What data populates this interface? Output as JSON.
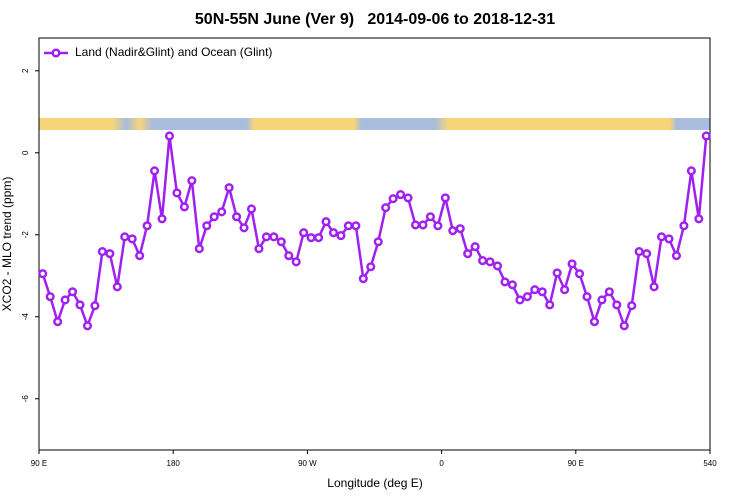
{
  "chart_data": {
    "type": "line",
    "title": "50N-55N June (Ver 9)   2014-09-06 to 2018-12-31",
    "x_label": "Longitude (deg E)",
    "y_label": "XCO2 - MLO trend (ppm)",
    "x": [
      92.5,
      97.5,
      102.5,
      107.5,
      112.5,
      117.5,
      122.5,
      127.5,
      132.5,
      137.5,
      142.5,
      147.5,
      152.5,
      157.5,
      162.5,
      167.5,
      172.5,
      177.5,
      182.5,
      187.5,
      192.5,
      197.5,
      202.5,
      207.5,
      212.5,
      217.5,
      222.5,
      227.5,
      232.5,
      237.5,
      242.5,
      247.5,
      252.5,
      257.5,
      262.5,
      267.5,
      272.5,
      277.5,
      282.5,
      287.5,
      292.5,
      297.5,
      302.5,
      307.5,
      312.5,
      317.5,
      322.5,
      327.5,
      332.5,
      337.5,
      342.5,
      347.5,
      352.5,
      357.5,
      362.5,
      367.5,
      372.5,
      377.5,
      382.5,
      387.5,
      392.5,
      397.5,
      402.5,
      407.5,
      412.5,
      417.5,
      422.5,
      427.5,
      432.5,
      437.5,
      442.5,
      447.5,
      452.5,
      457.5,
      462.5,
      467.5,
      472.5,
      477.5,
      482.5,
      487.5,
      492.5,
      497.5,
      502.5,
      507.5,
      512.5,
      517.5,
      522.5,
      527.5,
      532.5,
      537.5
    ],
    "series": [
      {
        "name": "Land (Nadir&Glint) and Ocean (Glint)",
        "color": "#a020f0",
        "values": [
          -2.95,
          -3.51,
          -4.12,
          -3.59,
          -3.39,
          -3.71,
          -4.22,
          -3.73,
          -2.41,
          -2.46,
          -3.27,
          -2.05,
          -2.1,
          -2.51,
          -1.78,
          -0.44,
          -1.61,
          0.41,
          -0.98,
          -1.32,
          -0.68,
          -2.34,
          -1.78,
          -1.56,
          -1.44,
          -0.85,
          -1.56,
          -1.83,
          -1.37,
          -2.34,
          -2.05,
          -2.05,
          -2.17,
          -2.51,
          -2.66,
          -1.95,
          -2.07,
          -2.07,
          -1.68,
          -1.95,
          -2.02,
          -1.78,
          -1.78,
          -3.07,
          -2.78,
          -2.17,
          -1.34,
          -1.12,
          -1.02,
          -1.1,
          -1.76,
          -1.76,
          -1.56,
          -1.78,
          -1.1,
          -1.9,
          -1.85,
          -2.46,
          -2.29,
          -2.63,
          -2.66,
          -2.76,
          -3.15,
          -3.22,
          -3.59,
          -3.51,
          -3.34,
          -3.39,
          -3.71,
          -2.93,
          -3.34,
          -2.71,
          -2.95,
          -3.51,
          -4.12,
          -3.59,
          -3.39,
          -3.71,
          -4.22,
          -3.73,
          -2.41,
          -2.46,
          -3.27,
          -2.05,
          -2.1,
          -2.51,
          -1.78,
          -0.44,
          -1.61,
          0.41
        ]
      }
    ],
    "xlim": [
      90,
      540
    ],
    "xticks": [
      {
        "value": 90,
        "label": "90 E"
      },
      180,
      {
        "value": 270,
        "label": "90 W"
      },
      {
        "value": 360,
        "label": "0"
      },
      {
        "value": 450,
        "label": "90 E"
      },
      540
    ],
    "ylim": [
      -7.25,
      2.8
    ],
    "yticks": [
      -6,
      -4,
      -2,
      0,
      2
    ],
    "legend": "top-left"
  }
}
